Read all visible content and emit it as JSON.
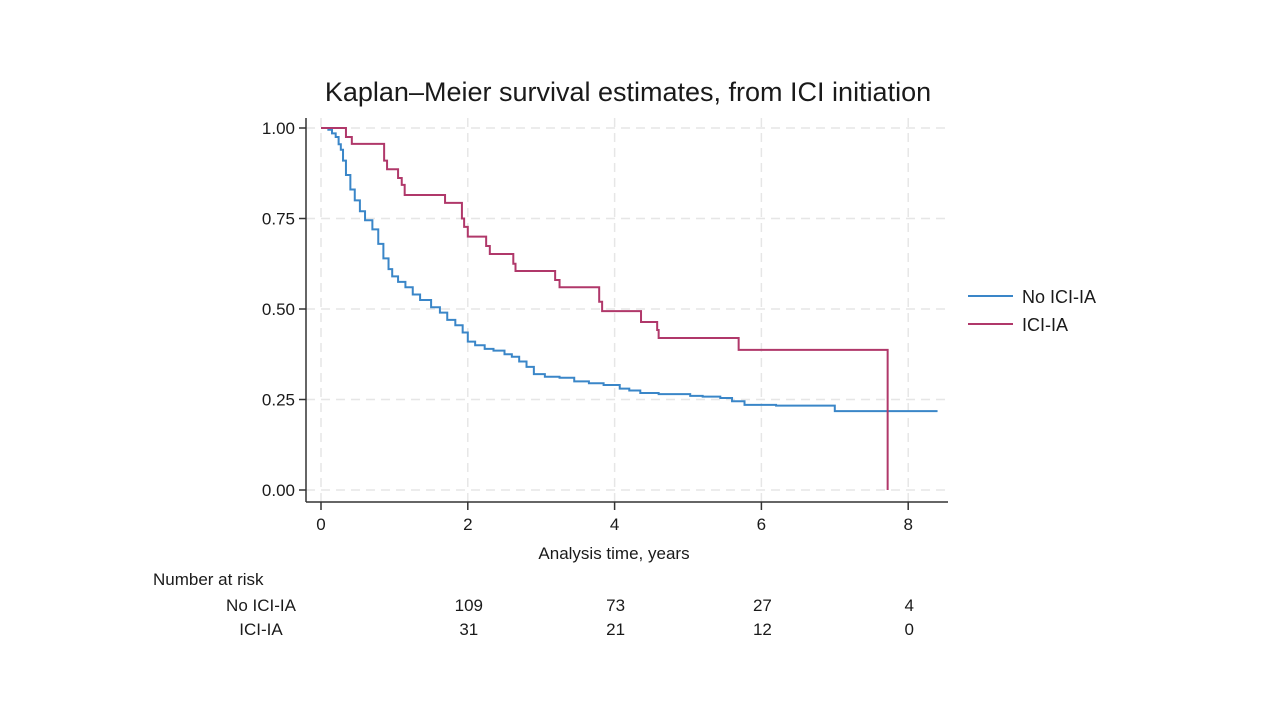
{
  "chart_data": {
    "type": "line",
    "subtype": "kaplan-meier-step",
    "title": "Kaplan–Meier survival estimates, from ICI initiation",
    "xlabel": "Analysis time, years",
    "ylabel": "",
    "xlim": [
      0,
      8.5
    ],
    "ylim": [
      0,
      1
    ],
    "xticks": [
      0,
      2,
      4,
      6,
      8
    ],
    "xtick_labels": [
      "0",
      "2",
      "4",
      "6",
      "8"
    ],
    "yticks": [
      0,
      0.25,
      0.5,
      0.75,
      1.0
    ],
    "ytick_labels": [
      "0.00",
      "0.25",
      "0.50",
      "0.75",
      "1.00"
    ],
    "grid": true,
    "legend_position": "right",
    "series": [
      {
        "name": "No ICI-IA",
        "color": "#3a86c8",
        "x": [
          0,
          0.1,
          0.15,
          0.2,
          0.24,
          0.27,
          0.3,
          0.34,
          0.4,
          0.46,
          0.53,
          0.6,
          0.7,
          0.78,
          0.85,
          0.92,
          0.97,
          1.05,
          1.15,
          1.25,
          1.35,
          1.5,
          1.62,
          1.72,
          1.83,
          1.93,
          2.0,
          2.1,
          2.23,
          2.35,
          2.5,
          2.6,
          2.7,
          2.8,
          2.9,
          3.05,
          3.25,
          3.45,
          3.65,
          3.85,
          4.07,
          4.2,
          4.35,
          4.6,
          5.03,
          5.2,
          5.44,
          5.6,
          5.77,
          6.2,
          7.0,
          8.4
        ],
        "y": [
          1.0,
          0.995,
          0.985,
          0.975,
          0.955,
          0.94,
          0.91,
          0.87,
          0.83,
          0.8,
          0.77,
          0.745,
          0.72,
          0.68,
          0.64,
          0.61,
          0.59,
          0.575,
          0.56,
          0.54,
          0.525,
          0.505,
          0.49,
          0.47,
          0.455,
          0.435,
          0.41,
          0.4,
          0.39,
          0.385,
          0.375,
          0.368,
          0.355,
          0.34,
          0.32,
          0.313,
          0.31,
          0.3,
          0.295,
          0.29,
          0.28,
          0.275,
          0.268,
          0.265,
          0.26,
          0.258,
          0.254,
          0.245,
          0.235,
          0.233,
          0.218,
          0.218
        ]
      },
      {
        "name": "ICI-IA",
        "color": "#b0386a",
        "x": [
          0,
          0.34,
          0.42,
          0.86,
          0.9,
          1.05,
          1.1,
          1.14,
          1.69,
          1.92,
          1.95,
          2.0,
          2.25,
          2.3,
          2.62,
          2.65,
          3.19,
          3.25,
          3.79,
          3.83,
          4.36,
          4.58,
          4.6,
          5.69,
          7.72
        ],
        "y": [
          1.0,
          0.975,
          0.956,
          0.91,
          0.886,
          0.862,
          0.843,
          0.815,
          0.793,
          0.75,
          0.727,
          0.7,
          0.674,
          0.652,
          0.625,
          0.605,
          0.58,
          0.56,
          0.52,
          0.494,
          0.464,
          0.442,
          0.42,
          0.387,
          0.0
        ]
      }
    ],
    "risk_table": {
      "heading": "Number at risk",
      "times": [
        2,
        4,
        6,
        8
      ],
      "rows": [
        {
          "label": "No ICI-IA",
          "values": [
            "109",
            "73",
            "27",
            "4"
          ]
        },
        {
          "label": "ICI-IA",
          "values": [
            "31",
            "21",
            "12",
            "0"
          ]
        }
      ]
    }
  }
}
